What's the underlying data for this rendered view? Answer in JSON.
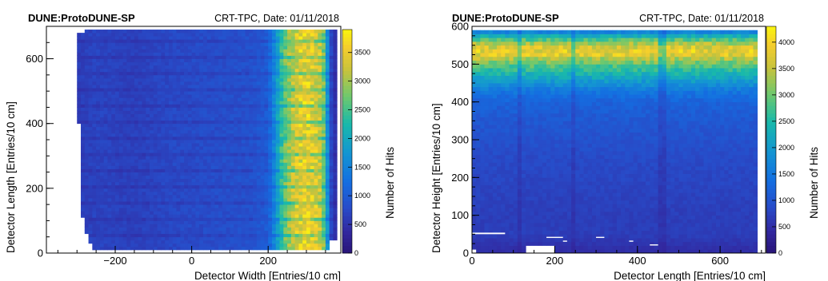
{
  "chart_data": [
    {
      "type": "heatmap",
      "title": "DUNE:ProtoDUNE-SP",
      "subtitle": "CRT-TPC, Date: 01/11/2018",
      "xlabel": "Detector Width [Entries/10 cm]",
      "ylabel": "Detector Length [Entries/10 cm]",
      "zlabel": "Number of Hits",
      "xlim": [
        -380,
        390
      ],
      "ylim": [
        0,
        700
      ],
      "zlim": [
        0,
        3900
      ],
      "xticks": [
        -200,
        0,
        200
      ],
      "yticks": [
        0,
        200,
        400,
        600
      ],
      "zticks": [
        0,
        500,
        1000,
        1500,
        2000,
        2500,
        3000,
        3500
      ],
      "xtick_labels": [
        "−200",
        "0",
        "200"
      ],
      "ytick_labels": [
        "0",
        "200",
        "400",
        "600"
      ],
      "ztick_labels": [
        "0",
        "500",
        "1000",
        "1500",
        "2000",
        "2500",
        "3000",
        "3500"
      ],
      "x_bin_width": 10,
      "y_bin_width": 10,
      "value_profile_x": [
        [
          -310,
          600
        ],
        [
          -250,
          700
        ],
        [
          -150,
          650
        ],
        [
          -50,
          750
        ],
        [
          50,
          800
        ],
        [
          150,
          850
        ],
        [
          200,
          1000
        ],
        [
          220,
          1700
        ],
        [
          240,
          2600
        ],
        [
          260,
          3100
        ],
        [
          280,
          3400
        ],
        [
          300,
          3500
        ],
        [
          320,
          3400
        ],
        [
          340,
          3200
        ],
        [
          350,
          2400
        ],
        [
          360,
          1000
        ],
        [
          370,
          500
        ]
      ],
      "y_extent": [
        10,
        690
      ]
    },
    {
      "type": "heatmap",
      "title": "DUNE:ProtoDUNE-SP",
      "subtitle": "CRT-TPC, Date: 01/11/2018",
      "xlabel": "Detector Length [Entries/10 cm]",
      "ylabel": "Detector Height [Entries/10 cm]",
      "zlabel": "Number of Hits",
      "xlim": [
        0,
        710
      ],
      "ylim": [
        0,
        600
      ],
      "zlim": [
        0,
        4300
      ],
      "xticks": [
        0,
        200,
        400,
        600
      ],
      "yticks": [
        0,
        100,
        200,
        300,
        400,
        500,
        600
      ],
      "zticks": [
        0,
        500,
        1000,
        1500,
        2000,
        2500,
        3000,
        3500,
        4000
      ],
      "xtick_labels": [
        "0",
        "200",
        "400",
        "600"
      ],
      "ytick_labels": [
        "0",
        "100",
        "200",
        "300",
        "400",
        "500",
        "600"
      ],
      "ztick_labels": [
        "0",
        "500",
        "1000",
        "1500",
        "2000",
        "2500",
        "3000",
        "3500",
        "4000"
      ],
      "x_bin_width": 10,
      "y_bin_width": 10,
      "value_profile_y": [
        [
          10,
          500
        ],
        [
          50,
          700
        ],
        [
          100,
          700
        ],
        [
          150,
          750
        ],
        [
          200,
          800
        ],
        [
          250,
          850
        ],
        [
          300,
          950
        ],
        [
          350,
          1050
        ],
        [
          400,
          1200
        ],
        [
          430,
          1500
        ],
        [
          460,
          2100
        ],
        [
          490,
          2700
        ],
        [
          510,
          3200
        ],
        [
          530,
          3900
        ],
        [
          550,
          3600
        ],
        [
          570,
          2600
        ],
        [
          590,
          1400
        ]
      ],
      "x_extent": [
        0,
        690
      ]
    }
  ]
}
